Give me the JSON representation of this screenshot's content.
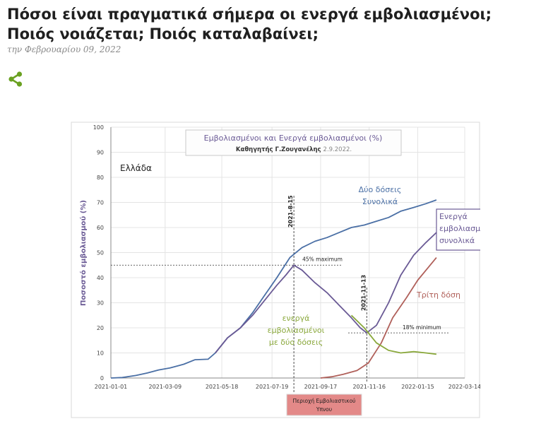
{
  "article": {
    "title": "Πόσοι είναι πραγματικά σήμερα οι ενεργά εμβολιασμένοι; Ποιός νοιάζεται; Ποιός καταλαβαίνει;",
    "date": "την Φεβρουαρίου 09, 2022",
    "share_icon": "share-icon",
    "accent_color": "#6aa121"
  },
  "chart_data": {
    "type": "line",
    "title": "Εμβολιασμένοι και Ενεργά εμβολιασμένοι (%)",
    "author": "Καθηγητής Γ.Ζουγανέλης",
    "author_date": "2.9.2022.",
    "region_label": "Ελλάδα",
    "ylabel": "Ποσοστό εμβολιασμού (%)",
    "ylim": [
      0,
      100
    ],
    "yticks": [
      "0",
      "10",
      "20",
      "30",
      "40",
      "50",
      "60",
      "70",
      "80",
      "90",
      "100"
    ],
    "xticks": [
      "2021-01-01",
      "2021-03-09",
      "2021-05-18",
      "2021-07-19",
      "2021-09-17",
      "2021-11-16",
      "2022-01-15",
      "2022-03-14"
    ],
    "x_axis_note": "Περιοχή Εμβολιαστικού Υπνου",
    "annotations": {
      "peak_date": "2021-8-15",
      "peak_label": "45% maximum",
      "trough_date": "2021-11-13",
      "trough_label": "18% minimum"
    },
    "series": [
      {
        "name": "Δύο δόσεις Συνολικά",
        "name_lines": [
          "Δύο δόσεις",
          "Συνολικά"
        ],
        "color": "#4a6fa5",
        "points": [
          [
            "2021-01-01",
            0
          ],
          [
            "2021-01-15",
            0.2
          ],
          [
            "2021-02-01",
            1
          ],
          [
            "2021-02-15",
            2
          ],
          [
            "2021-03-01",
            3.2
          ],
          [
            "2021-03-15",
            4
          ],
          [
            "2021-04-01",
            5.5
          ],
          [
            "2021-04-15",
            7.3
          ],
          [
            "2021-05-01",
            7.5
          ],
          [
            "2021-05-10",
            10
          ],
          [
            "2021-05-25",
            16
          ],
          [
            "2021-06-10",
            20
          ],
          [
            "2021-06-25",
            26
          ],
          [
            "2021-07-10",
            33
          ],
          [
            "2021-07-25",
            40
          ],
          [
            "2021-08-10",
            48
          ],
          [
            "2021-08-25",
            52
          ],
          [
            "2021-09-10",
            54.5
          ],
          [
            "2021-09-25",
            56
          ],
          [
            "2021-10-10",
            58
          ],
          [
            "2021-10-25",
            60
          ],
          [
            "2021-11-10",
            61
          ],
          [
            "2021-11-25",
            62.5
          ],
          [
            "2021-12-10",
            64
          ],
          [
            "2021-12-25",
            66.5
          ],
          [
            "2022-01-10",
            68
          ],
          [
            "2022-01-25",
            69.5
          ],
          [
            "2022-02-07",
            71
          ]
        ]
      },
      {
        "name": "Ενεργά εμβολιασμένοι συνολικά",
        "name_lines": [
          "Ενεργά",
          "εμβολιασμένοι",
          "συνολικά"
        ],
        "color": "#6a5a95",
        "points": [
          [
            "2021-05-10",
            10
          ],
          [
            "2021-05-25",
            16
          ],
          [
            "2021-06-10",
            20
          ],
          [
            "2021-06-25",
            25
          ],
          [
            "2021-07-10",
            31
          ],
          [
            "2021-07-25",
            37
          ],
          [
            "2021-08-05",
            41
          ],
          [
            "2021-08-15",
            45
          ],
          [
            "2021-08-25",
            43
          ],
          [
            "2021-09-10",
            38
          ],
          [
            "2021-09-25",
            34
          ],
          [
            "2021-10-10",
            29
          ],
          [
            "2021-10-25",
            24
          ],
          [
            "2021-11-05",
            20
          ],
          [
            "2021-11-13",
            18
          ],
          [
            "2021-11-25",
            21
          ],
          [
            "2021-12-10",
            30
          ],
          [
            "2021-12-25",
            41
          ],
          [
            "2022-01-10",
            49
          ],
          [
            "2022-01-25",
            54
          ],
          [
            "2022-02-07",
            58
          ]
        ]
      },
      {
        "name": "Τρίτη δόση",
        "name_lines": [
          "Τρίτη δόση"
        ],
        "color": "#b0605a",
        "points": [
          [
            "2021-09-17",
            0
          ],
          [
            "2021-10-01",
            0.5
          ],
          [
            "2021-10-15",
            1.5
          ],
          [
            "2021-11-01",
            3
          ],
          [
            "2021-11-15",
            6
          ],
          [
            "2021-12-01",
            14
          ],
          [
            "2021-12-15",
            24
          ],
          [
            "2022-01-01",
            32
          ],
          [
            "2022-01-15",
            39
          ],
          [
            "2022-02-07",
            48
          ]
        ]
      },
      {
        "name": "ενεργά εμβολιασμένοι με δύο δόσεις",
        "name_lines": [
          "ενεργά",
          "εμβολιασμένοι",
          "με δύο δόσεις"
        ],
        "color": "#8aa83c",
        "points": [
          [
            "2021-10-25",
            25
          ],
          [
            "2021-11-10",
            20
          ],
          [
            "2021-11-25",
            14
          ],
          [
            "2021-12-10",
            11
          ],
          [
            "2021-12-25",
            10
          ],
          [
            "2022-01-10",
            10.5
          ],
          [
            "2022-01-25",
            10
          ],
          [
            "2022-02-07",
            9.5
          ]
        ]
      }
    ]
  }
}
